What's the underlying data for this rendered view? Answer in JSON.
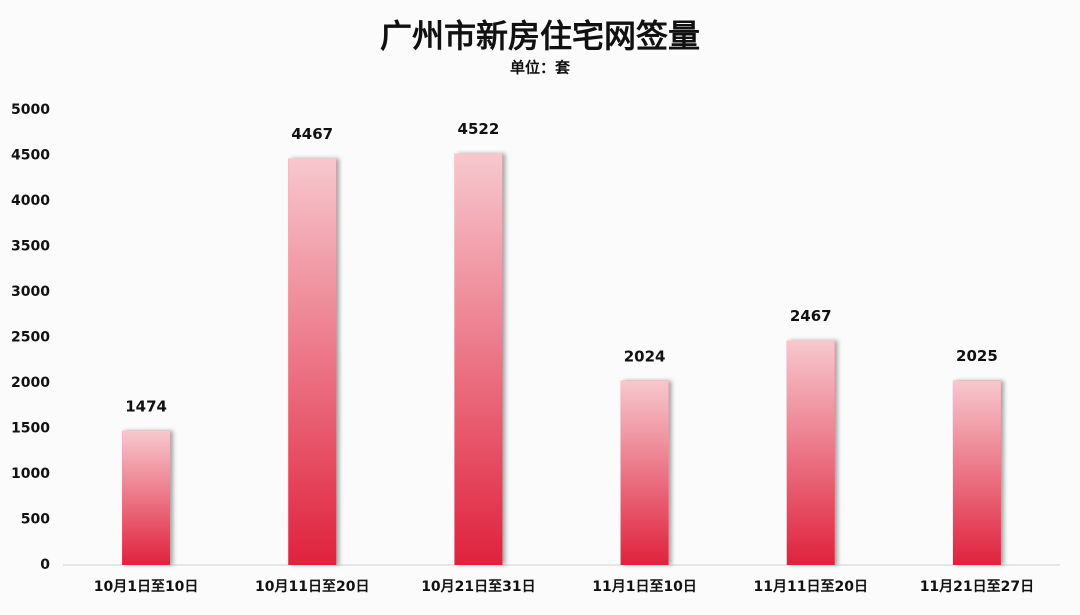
{
  "chart_data": {
    "type": "bar",
    "title": "广州市新房住宅网签量",
    "subtitle": "单位：套",
    "categories": [
      "10月1日至10日",
      "10月11日至20日",
      "10月21日至31日",
      "11月1日至10日",
      "11月11日至20日",
      "11月21日至27日"
    ],
    "values": [
      1474,
      4467,
      4522,
      2024,
      2467,
      2025
    ],
    "color": "#e0213c",
    "ylim": [
      0,
      5000
    ],
    "yticks": [
      0,
      500,
      1000,
      1500,
      2000,
      2500,
      3000,
      3500,
      4000,
      4500,
      5000
    ],
    "grid": false
  }
}
